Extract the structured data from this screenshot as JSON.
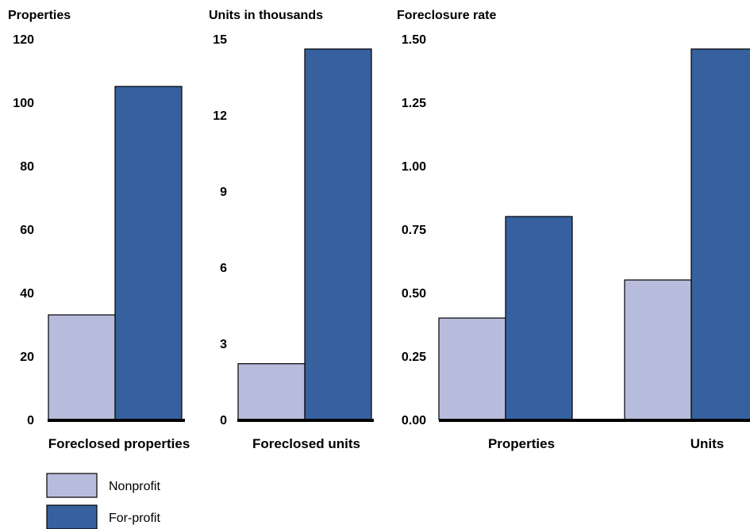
{
  "legend": [
    {
      "label": "Nonprofit",
      "color": "#b8bcdc"
    },
    {
      "label": "For-profit",
      "color": "#37619e"
    }
  ],
  "chart_data": [
    {
      "type": "bar",
      "ytitle": "Properties",
      "ylim": [
        0,
        120
      ],
      "yticks": [
        "0",
        "20",
        "40",
        "60",
        "80",
        "100",
        "120"
      ],
      "categories": [
        "Foreclosed properties"
      ],
      "series": [
        {
          "name": "Nonprofit",
          "values": [
            33
          ]
        },
        {
          "name": "For-profit",
          "values": [
            105
          ]
        }
      ]
    },
    {
      "type": "bar",
      "ytitle": "Units in thousands",
      "ylim": [
        0,
        15
      ],
      "yticks": [
        "0",
        "3",
        "6",
        "9",
        "12",
        "15"
      ],
      "categories": [
        "Foreclosed units"
      ],
      "series": [
        {
          "name": "Nonprofit",
          "values": [
            2.2
          ]
        },
        {
          "name": "For-profit",
          "values": [
            14.6
          ]
        }
      ]
    },
    {
      "type": "bar",
      "ytitle": "Foreclosure rate",
      "ylim": [
        0,
        1.5
      ],
      "yticks": [
        "0.00",
        "0.25",
        "0.50",
        "0.75",
        "1.00",
        "1.25",
        "1.50"
      ],
      "categories": [
        "Properties",
        "Units"
      ],
      "series": [
        {
          "name": "Nonprofit",
          "values": [
            0.4,
            0.55
          ]
        },
        {
          "name": "For-profit",
          "values": [
            0.8,
            1.46
          ]
        }
      ]
    }
  ]
}
